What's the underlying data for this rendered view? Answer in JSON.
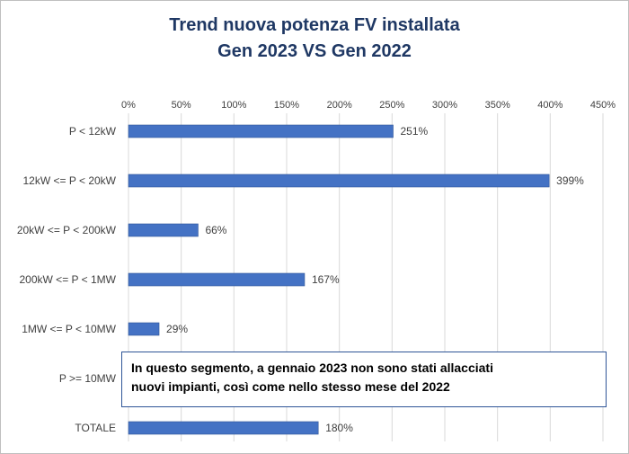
{
  "chart_data": {
    "type": "bar",
    "orientation": "horizontal",
    "title": [
      "Trend nuova potenza FV installata",
      "Gen 2023 VS Gen 2022"
    ],
    "categories": [
      "P < 12kW",
      "12kW <= P < 20kW",
      "20kW <= P < 200kW",
      "200kW <= P < 1MW",
      "1MW <= P < 10MW",
      "P >= 10MW",
      "TOTALE"
    ],
    "values": [
      251,
      399,
      66,
      167,
      29,
      null,
      180
    ],
    "data_labels": [
      "251%",
      "399%",
      "66%",
      "167%",
      "29%",
      "",
      "180%"
    ],
    "xaxis": {
      "position": "top",
      "ticks": [
        0,
        50,
        100,
        150,
        200,
        250,
        300,
        350,
        400,
        450
      ],
      "tick_labels": [
        "0%",
        "50%",
        "100%",
        "150%",
        "200%",
        "250%",
        "300%",
        "350%",
        "400%",
        "450%"
      ],
      "xlim": [
        0,
        450
      ]
    },
    "grid": true,
    "bar_color": "#4472c4",
    "title_color": "#1f3864",
    "annotation": {
      "lines": [
        "In questo segmento, a gennaio  2023 non sono stati allacciati",
        "nuovi impianti,  così come nello stesso mese del 2022"
      ]
    }
  }
}
